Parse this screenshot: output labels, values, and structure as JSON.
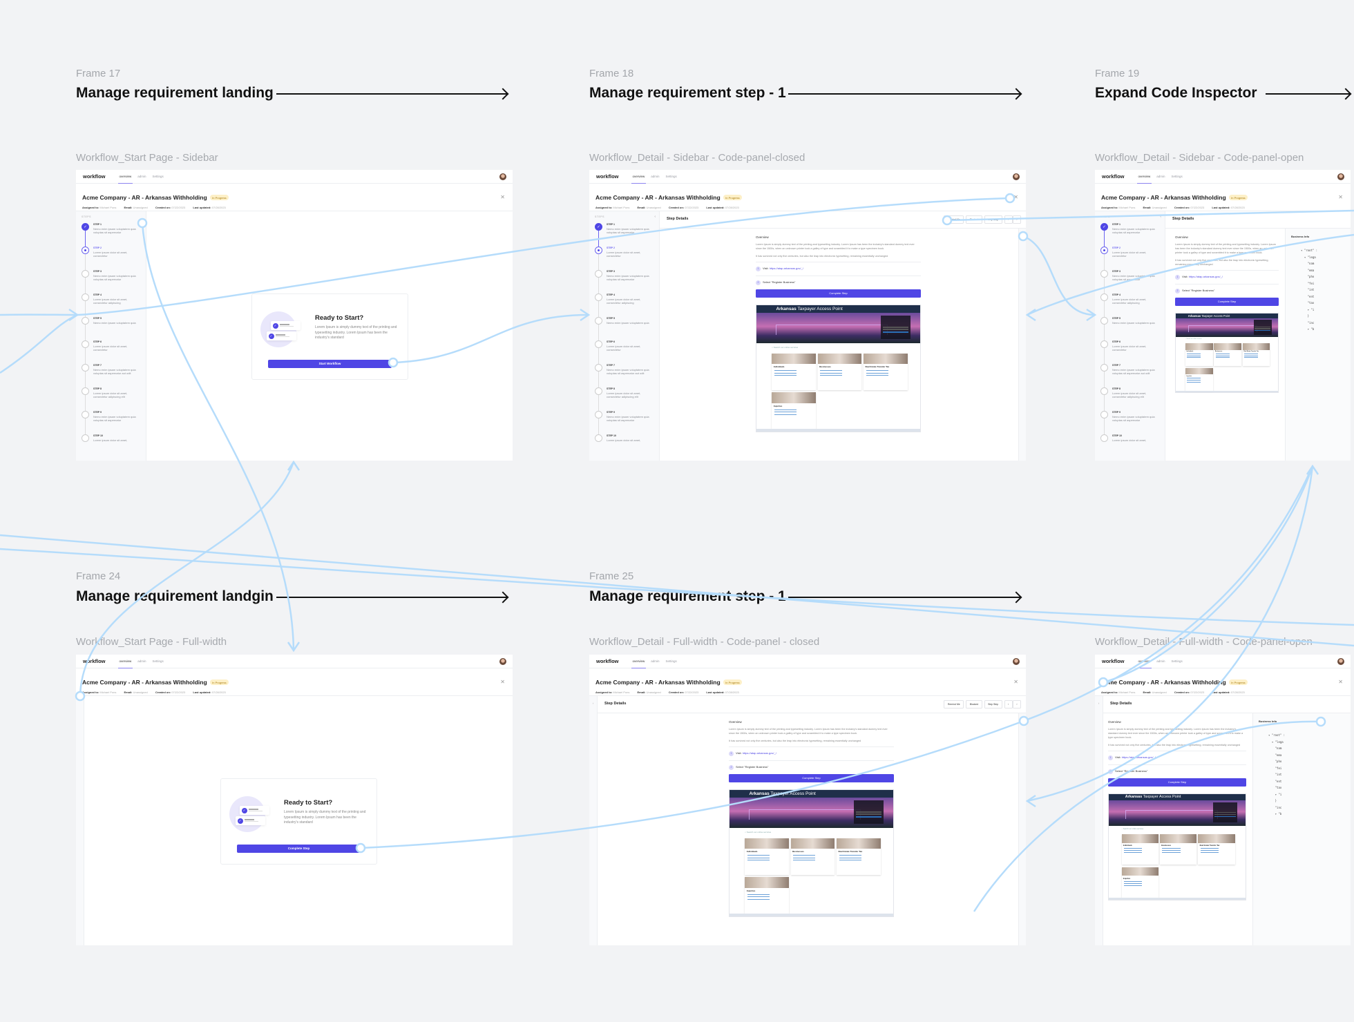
{
  "frames": [
    {
      "label": "Frame 17",
      "title": "Manage requirement landing",
      "screen_name": "Workflow_Start Page - Sidebar",
      "variant": "landing",
      "sidebar": true,
      "card_button": "Start Workflow"
    },
    {
      "label": "Frame 18",
      "title": "Manage requirement step - 1",
      "screen_name": "Workflow_Detail - Sidebar - Code-panel-closed",
      "variant": "detail",
      "sidebar": true,
      "code_open": false
    },
    {
      "label": "Frame 19",
      "title": "Expand Code Inspector",
      "screen_name": "Workflow_Detail - Sidebar - Code-panel-open",
      "variant": "detail",
      "sidebar": true,
      "code_open": true
    },
    {
      "label": "Frame 24",
      "title": "Manage requirement landgin",
      "screen_name": "Workflow_Start Page - Full-width",
      "variant": "landing",
      "sidebar": false,
      "card_button": "Complete Step"
    },
    {
      "label": "Frame 25",
      "title": "Manage requirement step - 1",
      "screen_name": "Workflow_Detail - Full-width - Code-panel - closed",
      "variant": "detail",
      "sidebar": false,
      "code_open": false
    },
    {
      "label": "",
      "title": "",
      "screen_name": "Workflow_Detail - Full-width - Code-panel-open",
      "variant": "detail",
      "sidebar": false,
      "code_open": true
    }
  ],
  "app": {
    "brand": "workflow",
    "tabs": [
      "overview",
      "admin",
      "Settings"
    ],
    "title": "Acme Company - AR - Arkansas Withholding",
    "status": "In Progress",
    "meta": {
      "assigned_label": "Assigned to:",
      "assigned": "Michael Pons",
      "email_label": "Email:",
      "email": "Unassigned",
      "created_label": "Created on:",
      "created": "07/22/2023",
      "updated_label": "Last updated:",
      "updated": "07/28/2023"
    },
    "steps_label": "STEPS",
    "steps": [
      {
        "name": "STEP 1",
        "desc": "Nemo enim ipsam voluptatem quia voluptas sit aspernatur",
        "state": "done"
      },
      {
        "name": "STEP 2",
        "desc": "Lorem ipsum dolor sit amet, consectetur",
        "state": "current"
      },
      {
        "name": "STEP 3",
        "desc": "Nemo enim ipsam voluptatem quia voluptas sit aspernatur",
        "state": "todo"
      },
      {
        "name": "STEP 4",
        "desc": "Lorem ipsum dolor sit amet, consectetur adipiscing",
        "state": "todo"
      },
      {
        "name": "STEP 5",
        "desc": "Nemo enim ipsam voluptatem quia",
        "state": "todo"
      },
      {
        "name": "STEP 6",
        "desc": "Lorem ipsum dolor sit amet, consectetur",
        "state": "todo"
      },
      {
        "name": "STEP 7",
        "desc": "Nemo enim ipsam voluptatem quia voluptas sit aspernatur aut odit",
        "state": "todo"
      },
      {
        "name": "STEP 8",
        "desc": "Lorem ipsum dolor sit amet, consectetur adipiscing elit",
        "state": "todo"
      },
      {
        "name": "STEP 9",
        "desc": "Nemo enim ipsam voluptatem quia voluptas sit aspernatur",
        "state": "todo"
      },
      {
        "name": "STEP 10",
        "desc": "Lorem ipsum dolor sit amet,",
        "state": "todo"
      }
    ],
    "card": {
      "title": "Ready to Start?",
      "text": "Lorem Ipsum is simply dummy text of the printing and typesetting industry. Lorem Ipsum has been the industry's standard"
    },
    "detail": {
      "bar_title": "Step Details",
      "actions": [
        "Remind Me",
        "Blocked",
        "Skip Step"
      ],
      "prev": "‹",
      "next": "›",
      "overview_heading": "Overview",
      "overview_p1": "Lorem Ipsum is simply dummy text of the printing and typesetting industry. Lorem Ipsum has been the industry's standard dummy text ever since the 1500s, when an unknown printer took a galley of type and scrambled it to make a type specimen book.",
      "overview_p2": "It has survived not only five centuries, but also the leap into electronic typesetting, remaining essentially unchanged",
      "item1_label": "Visit:",
      "item1_link": "https://atap.arkansas.gov/_/",
      "item2_label": "Select \"Register Business\"",
      "complete": "Complete Step"
    },
    "preview": {
      "title_bold": "Arkansas",
      "title_rest": "Taxpayer Access Point",
      "search": "Search our online services",
      "cards": [
        "Individuals",
        "Businesses",
        "Real Estate Transfer Tax",
        "Inquiries"
      ]
    },
    "code": {
      "heading": "Business Info",
      "lines": [
        "▾ \"root\" :",
        "  ▾ \"lega",
        "    \"nam",
        "    \"ema",
        "    \"pho",
        "    \"fei",
        "    \"int",
        "    \"ent",
        "    \"tax",
        "    ▾ \"i",
        "    }",
        "    \"inc",
        "    ▾ \"b"
      ]
    }
  },
  "colors": {
    "accent": "#4f46e5",
    "badge_bg": "#fdf0c7",
    "connector": "#b5dcfb",
    "canvas": "#f2f3f5"
  }
}
